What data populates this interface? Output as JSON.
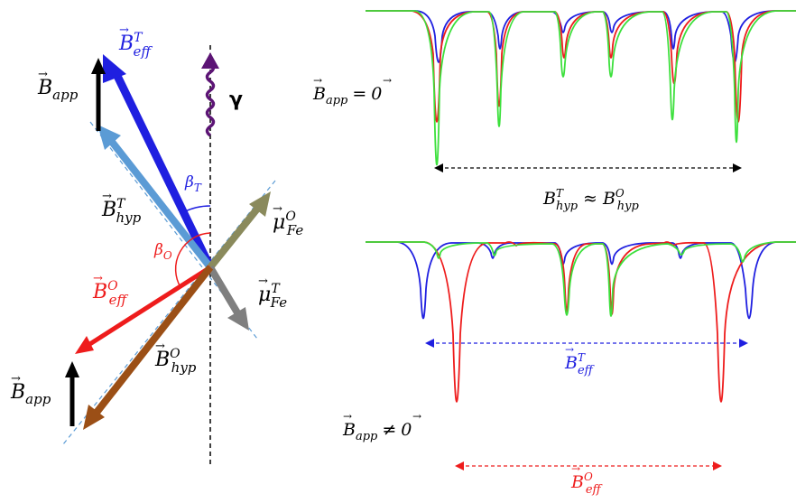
{
  "colors": {
    "black": "#000000",
    "blue": "#1f1fe0",
    "light_blue": "#5b9bd5",
    "red": "#ee1c1c",
    "brown": "#9b4f16",
    "olive": "#8a8a5c",
    "gray": "#7f7f7f",
    "purple": "#5c1475",
    "green": "#3ce03c",
    "dash_blue": "#5b9bd5"
  },
  "left": {
    "gamma_symbol": "γ",
    "labels": {
      "b_app_top": {
        "base": "B",
        "sub": "app"
      },
      "b_eff_t": {
        "base": "B",
        "sup": "T",
        "sub": "eff"
      },
      "b_hyp_t": {
        "base": "B",
        "sup": "T",
        "sub": "hyp"
      },
      "beta_t": {
        "base": "β",
        "sub": "T"
      },
      "beta_o": {
        "base": "β",
        "sub": "O"
      },
      "mu_fe_o": {
        "base": "μ",
        "sup": "O",
        "sub": "Fe"
      },
      "mu_fe_t": {
        "base": "μ",
        "sup": "T",
        "sub": "Fe"
      },
      "b_eff_o": {
        "base": "B",
        "sup": "O",
        "sub": "eff"
      },
      "b_hyp_o": {
        "base": "B",
        "sup": "O",
        "sub": "hyp"
      },
      "b_app_bottom": {
        "base": "B",
        "sub": "app"
      }
    }
  },
  "right": {
    "top_condition": {
      "base": "B",
      "sub": "app",
      "rel": "=",
      "rhs": "0"
    },
    "top_relation": {
      "a_base": "B",
      "a_sup": "T",
      "a_sub": "hyp",
      "op": "≈",
      "b_base": "B",
      "b_sup": "O",
      "b_sub": "hyp"
    },
    "bottom_condition": {
      "base": "B",
      "sub": "app",
      "rel": "≠",
      "rhs": "0"
    },
    "bottom_mid_label": {
      "base": "B",
      "sup": "T",
      "sub": "eff"
    },
    "bottom_low_label": {
      "base": "B",
      "sup": "O",
      "sub": "eff"
    }
  }
}
